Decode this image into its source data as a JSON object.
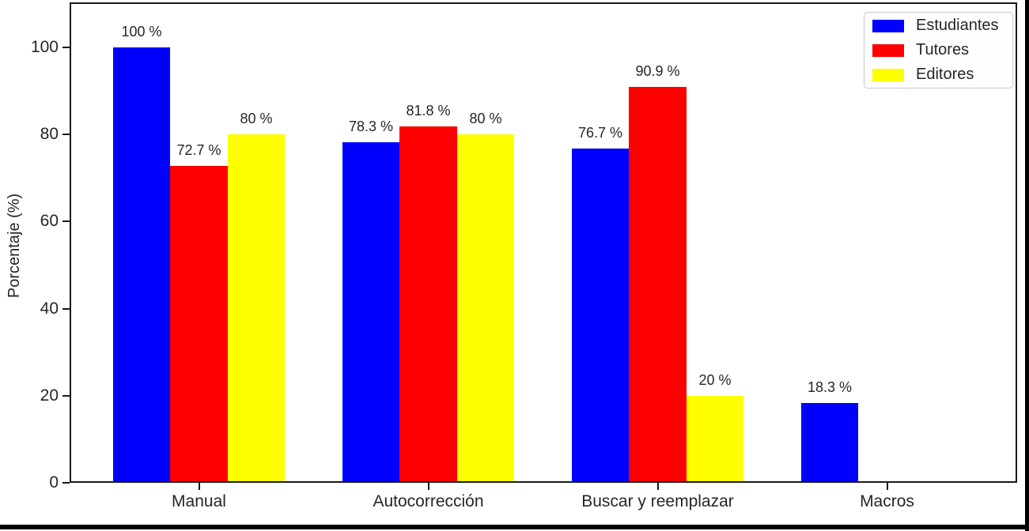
{
  "chart_data": {
    "type": "bar",
    "title": "",
    "xlabel": "",
    "ylabel": "Porcentaje (%)",
    "categories": [
      "Manual",
      "Autocorrección",
      "Buscar y reemplazar",
      "Macros"
    ],
    "series": [
      {
        "name": "Estudiantes",
        "color": "#0000ff",
        "values": [
          100,
          78.3,
          76.7,
          18.3
        ],
        "labels": [
          "100 %",
          "78.3 %",
          "76.7 %",
          "18.3 %"
        ]
      },
      {
        "name": "Tutores",
        "color": "#ff0000",
        "values": [
          72.7,
          81.8,
          90.9,
          null
        ],
        "labels": [
          "72.7 %",
          "81.8 %",
          "90.9 %",
          null
        ]
      },
      {
        "name": "Editores",
        "color": "#ffff00",
        "values": [
          80,
          80,
          20,
          null
        ],
        "labels": [
          "80 %",
          "80 %",
          "20 %",
          null
        ]
      }
    ],
    "yticks": [
      0,
      20,
      40,
      60,
      80,
      100
    ],
    "ylim": [
      0,
      110
    ],
    "grid": false,
    "legend_position": "upper right",
    "value_label_format": "{value} %"
  }
}
